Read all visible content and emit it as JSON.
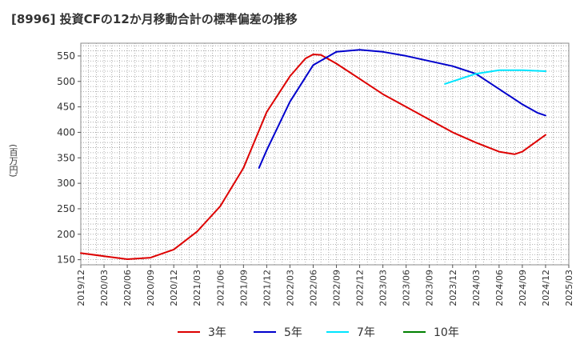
{
  "chart_data": {
    "type": "line",
    "title": "[8996]  投資CFの12か月移動合計の標準偏差の推移",
    "ylabel": "(百万円)",
    "ylim": [
      140,
      575
    ],
    "yticks": [
      150,
      200,
      250,
      300,
      350,
      400,
      450,
      500,
      550
    ],
    "xticks": [
      "2019/12",
      "2020/03",
      "2020/06",
      "2020/09",
      "2020/12",
      "2021/03",
      "2021/06",
      "2021/09",
      "2021/12",
      "2022/03",
      "2022/06",
      "2022/09",
      "2022/12",
      "2023/03",
      "2023/06",
      "2023/09",
      "2023/12",
      "2024/03",
      "2024/06",
      "2024/09",
      "2024/12",
      "2025/03"
    ],
    "grid": true,
    "legend_position": "bottom",
    "series": [
      {
        "name": "3年",
        "color": "#dd0000",
        "points": [
          [
            "2019/12",
            163
          ],
          [
            "2020/03",
            157
          ],
          [
            "2020/06",
            151
          ],
          [
            "2020/09",
            154
          ],
          [
            "2020/12",
            170
          ],
          [
            "2021/03",
            205
          ],
          [
            "2021/06",
            255
          ],
          [
            "2021/09",
            330
          ],
          [
            "2021/12",
            440
          ],
          [
            "2022/03",
            510
          ],
          [
            "2022/05",
            545
          ],
          [
            "2022/06",
            553
          ],
          [
            "2022/07",
            552
          ],
          [
            "2022/09",
            535
          ],
          [
            "2022/12",
            505
          ],
          [
            "2023/03",
            475
          ],
          [
            "2023/06",
            450
          ],
          [
            "2023/09",
            425
          ],
          [
            "2023/12",
            400
          ],
          [
            "2024/03",
            380
          ],
          [
            "2024/06",
            362
          ],
          [
            "2024/08",
            357
          ],
          [
            "2024/09",
            362
          ],
          [
            "2024/12",
            395
          ]
        ]
      },
      {
        "name": "5年",
        "color": "#0000cc",
        "points": [
          [
            "2021/11",
            330
          ],
          [
            "2021/12",
            365
          ],
          [
            "2022/03",
            460
          ],
          [
            "2022/06",
            532
          ],
          [
            "2022/09",
            558
          ],
          [
            "2022/12",
            562
          ],
          [
            "2023/03",
            558
          ],
          [
            "2023/06",
            550
          ],
          [
            "2023/09",
            540
          ],
          [
            "2023/12",
            530
          ],
          [
            "2024/03",
            515
          ],
          [
            "2024/06",
            485
          ],
          [
            "2024/09",
            455
          ],
          [
            "2024/11",
            438
          ],
          [
            "2024/12",
            433
          ]
        ]
      },
      {
        "name": "7年",
        "color": "#00e5ff",
        "points": [
          [
            "2023/11",
            495
          ],
          [
            "2024/01",
            505
          ],
          [
            "2024/03",
            515
          ],
          [
            "2024/06",
            522
          ],
          [
            "2024/09",
            522
          ],
          [
            "2024/12",
            520
          ]
        ]
      },
      {
        "name": "10年",
        "color": "#008000",
        "points": []
      }
    ]
  }
}
